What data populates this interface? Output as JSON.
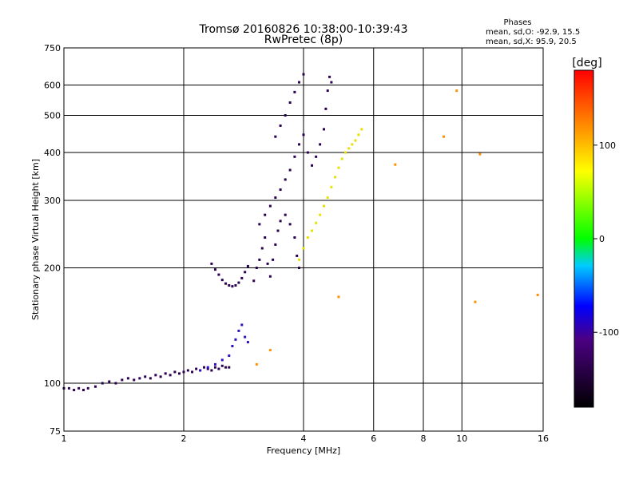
{
  "chart_data": {
    "type": "scatter",
    "title": "Tromsø 20160826 10:38:00-10:39:43",
    "subtitle": "RwPretec (8p)",
    "xlabel": "Frequency [MHz]",
    "ylabel": "Stationary phase Virtual Height [km]",
    "x_scale": "log",
    "y_scale": "log",
    "xlim": [
      1,
      16
    ],
    "ylim": [
      75,
      750
    ],
    "x_ticks": [
      1,
      2,
      4,
      6,
      8,
      10,
      16
    ],
    "y_ticks": [
      75,
      100,
      200,
      300,
      400,
      500,
      600,
      750
    ],
    "grid": true,
    "phase_info": {
      "title": "Phases",
      "o_line": "mean, sd,O: -92.9, 15.5",
      "x_line": "mean, sd,X:  95.9, 20.5"
    },
    "colorbar": {
      "label": "[deg]",
      "range": [
        -180,
        180
      ],
      "ticks": [
        100,
        0,
        -100
      ]
    },
    "traces": [
      {
        "phase": -120,
        "points": [
          [
            1.0,
            97
          ],
          [
            1.03,
            97
          ],
          [
            1.06,
            96
          ],
          [
            1.09,
            97
          ],
          [
            1.12,
            96
          ],
          [
            1.15,
            97
          ],
          [
            1.2,
            98
          ],
          [
            1.25,
            100
          ],
          [
            1.3,
            101
          ],
          [
            1.35,
            100
          ],
          [
            1.4,
            102
          ],
          [
            1.45,
            103
          ],
          [
            1.5,
            102
          ],
          [
            1.55,
            103
          ],
          [
            1.6,
            104
          ],
          [
            1.65,
            103
          ],
          [
            1.7,
            105
          ],
          [
            1.75,
            104
          ],
          [
            1.8,
            106
          ],
          [
            1.85,
            105
          ],
          [
            1.9,
            107
          ],
          [
            1.95,
            106
          ],
          [
            2.0,
            107
          ],
          [
            2.05,
            108
          ],
          [
            2.1,
            107
          ],
          [
            2.15,
            109
          ],
          [
            2.2,
            108
          ],
          [
            2.25,
            110
          ],
          [
            2.3,
            109
          ],
          [
            2.35,
            108
          ],
          [
            2.4,
            110
          ],
          [
            2.45,
            109
          ],
          [
            2.5,
            111
          ],
          [
            2.55,
            110
          ],
          [
            2.6,
            110
          ]
        ]
      },
      {
        "phase": -95,
        "points": [
          [
            2.2,
            108
          ],
          [
            2.3,
            110
          ],
          [
            2.4,
            112
          ],
          [
            2.5,
            115
          ],
          [
            2.6,
            118
          ],
          [
            2.65,
            125
          ],
          [
            2.7,
            130
          ],
          [
            2.75,
            137
          ],
          [
            2.8,
            142
          ],
          [
            2.85,
            132
          ],
          [
            2.9,
            128
          ]
        ]
      },
      {
        "phase": -110,
        "points": [
          [
            2.35,
            205
          ],
          [
            2.4,
            198
          ],
          [
            2.45,
            192
          ],
          [
            2.5,
            186
          ],
          [
            2.55,
            182
          ],
          [
            2.6,
            180
          ],
          [
            2.65,
            179
          ],
          [
            2.7,
            180
          ],
          [
            2.75,
            183
          ],
          [
            2.8,
            188
          ],
          [
            2.85,
            195
          ],
          [
            2.9,
            202
          ]
        ]
      },
      {
        "phase": -130,
        "points": [
          [
            3.0,
            185
          ],
          [
            3.05,
            200
          ],
          [
            3.1,
            210
          ],
          [
            3.15,
            225
          ],
          [
            3.2,
            240
          ],
          [
            3.25,
            205
          ],
          [
            3.3,
            190
          ],
          [
            3.35,
            210
          ],
          [
            3.4,
            230
          ],
          [
            3.45,
            250
          ],
          [
            3.5,
            265
          ],
          [
            3.6,
            275
          ],
          [
            3.7,
            260
          ],
          [
            3.8,
            240
          ],
          [
            3.85,
            215
          ],
          [
            3.9,
            200
          ]
        ]
      },
      {
        "phase": -115,
        "points": [
          [
            3.1,
            260
          ],
          [
            3.2,
            275
          ],
          [
            3.3,
            290
          ],
          [
            3.4,
            305
          ],
          [
            3.5,
            320
          ],
          [
            3.6,
            340
          ],
          [
            3.7,
            360
          ],
          [
            3.8,
            390
          ],
          [
            3.9,
            420
          ],
          [
            4.0,
            445
          ],
          [
            4.1,
            400
          ],
          [
            4.2,
            370
          ],
          [
            4.3,
            390
          ],
          [
            4.4,
            420
          ],
          [
            4.5,
            460
          ],
          [
            4.55,
            520
          ],
          [
            4.6,
            580
          ],
          [
            4.65,
            630
          ],
          [
            4.7,
            610
          ]
        ]
      },
      {
        "phase": -112,
        "points": [
          [
            3.4,
            440
          ],
          [
            3.5,
            470
          ],
          [
            3.6,
            500
          ],
          [
            3.7,
            540
          ],
          [
            3.8,
            575
          ],
          [
            3.9,
            610
          ],
          [
            4.0,
            640
          ]
        ]
      },
      {
        "phase": 95,
        "points": [
          [
            3.9,
            210
          ],
          [
            4.0,
            225
          ],
          [
            4.1,
            240
          ],
          [
            4.2,
            250
          ],
          [
            4.3,
            262
          ],
          [
            4.4,
            275
          ],
          [
            4.5,
            290
          ],
          [
            4.6,
            305
          ],
          [
            4.7,
            325
          ],
          [
            4.8,
            345
          ],
          [
            4.9,
            365
          ],
          [
            5.0,
            385
          ],
          [
            5.1,
            400
          ],
          [
            5.2,
            410
          ],
          [
            5.3,
            420
          ],
          [
            5.4,
            430
          ],
          [
            5.5,
            445
          ],
          [
            5.6,
            460
          ]
        ]
      },
      {
        "phase": 120,
        "points": [
          [
            3.3,
            122
          ],
          [
            3.05,
            112
          ],
          [
            6.8,
            372
          ],
          [
            9.0,
            440
          ],
          [
            9.7,
            580
          ],
          [
            11.1,
            396
          ],
          [
            10.8,
            163
          ],
          [
            15.5,
            170
          ],
          [
            4.9,
            168
          ]
        ]
      }
    ]
  }
}
